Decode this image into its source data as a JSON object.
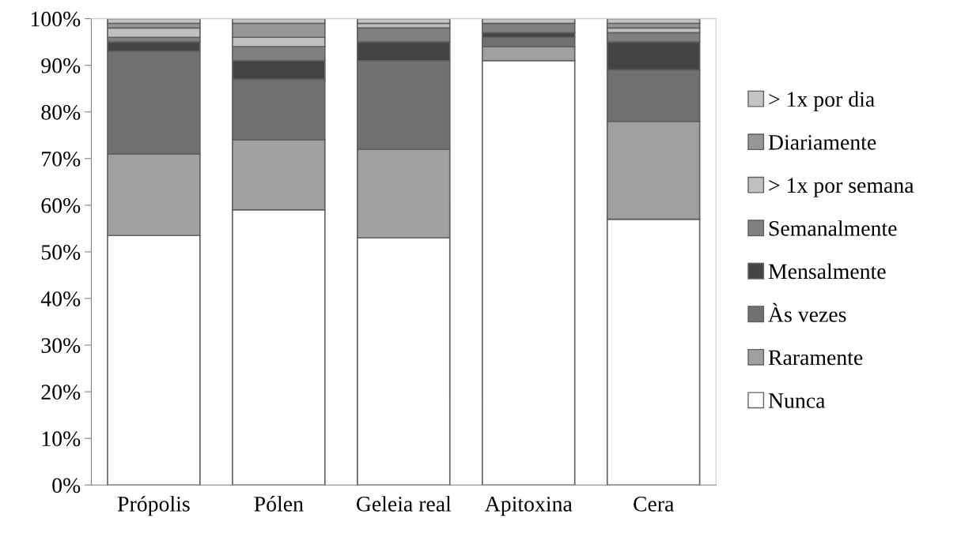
{
  "chart_data": {
    "type": "bar",
    "stacked": true,
    "categories": [
      "Própolis",
      "Pólen",
      "Geleia real",
      "Apitoxina",
      "Cera"
    ],
    "series": [
      {
        "name": "Nunca",
        "color": "#ffffff",
        "values": [
          53.5,
          59,
          53,
          91,
          57
        ]
      },
      {
        "name": "Raramente",
        "color": "#a0a0a0",
        "values": [
          17.5,
          15,
          19,
          3,
          21
        ]
      },
      {
        "name": "Às vezes",
        "color": "#707070",
        "values": [
          22,
          13,
          19,
          2,
          11
        ]
      },
      {
        "name": "Mensalmente",
        "color": "#444444",
        "values": [
          2,
          4,
          4,
          1,
          6
        ]
      },
      {
        "name": "Semanalmente",
        "color": "#808080",
        "values": [
          1,
          3,
          3,
          2,
          2
        ]
      },
      {
        "name": "> 1x por semana",
        "color": "#c0c0c0",
        "values": [
          2,
          2,
          1,
          0,
          1
        ]
      },
      {
        "name": "Diariamente",
        "color": "#969696",
        "values": [
          1,
          3,
          0,
          0,
          1
        ]
      },
      {
        "name": "> 1x por dia",
        "color": "#c4c4c4",
        "values": [
          1,
          1,
          1,
          1,
          1
        ]
      }
    ],
    "ylim": [
      0,
      100
    ],
    "yticks": [
      {
        "value": 0,
        "label": "0%"
      },
      {
        "value": 10,
        "label": "10%"
      },
      {
        "value": 20,
        "label": "20%"
      },
      {
        "value": 30,
        "label": "30%"
      },
      {
        "value": 40,
        "label": "40%"
      },
      {
        "value": 50,
        "label": "50%"
      },
      {
        "value": 60,
        "label": "60%"
      },
      {
        "value": 70,
        "label": "70%"
      },
      {
        "value": 80,
        "label": "80%"
      },
      {
        "value": 90,
        "label": "90%"
      },
      {
        "value": 100,
        "label": "100%"
      }
    ],
    "grid": false,
    "legend": "right"
  }
}
